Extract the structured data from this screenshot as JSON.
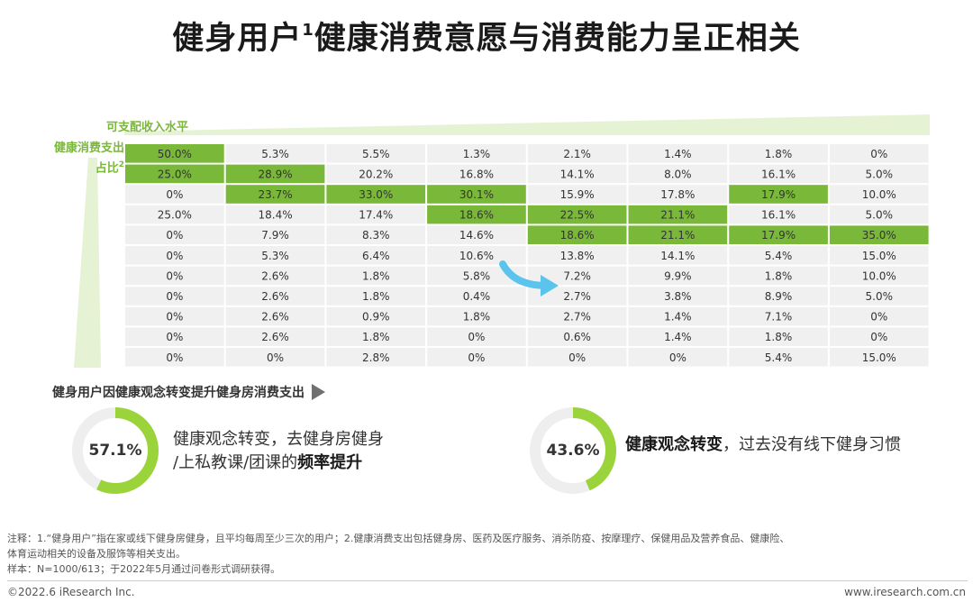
{
  "title": {
    "main": "健身用户",
    "sup": "1",
    "rest": "健康消费意愿与消费能力呈正相关"
  },
  "colors": {
    "accent": "#7ab83a",
    "cell_bg": "#f0f0f0",
    "highlight": "#7ab83a",
    "arrow": "#5ac4ec",
    "donut_track": "#eeeeee"
  },
  "chart_data": {
    "type": "table",
    "x_axis_label": "可支配收入水平",
    "y_axis_label": "健康消费支出占比",
    "y_axis_label_sup": "2",
    "rows": [
      [
        "50.0%",
        "5.3%",
        "5.5%",
        "1.3%",
        "2.1%",
        "1.4%",
        "1.8%",
        "0%"
      ],
      [
        "25.0%",
        "28.9%",
        "20.2%",
        "16.8%",
        "14.1%",
        "8.0%",
        "16.1%",
        "5.0%"
      ],
      [
        "0%",
        "23.7%",
        "33.0%",
        "30.1%",
        "15.9%",
        "17.8%",
        "17.9%",
        "10.0%"
      ],
      [
        "25.0%",
        "18.4%",
        "17.4%",
        "18.6%",
        "22.5%",
        "21.1%",
        "16.1%",
        "5.0%"
      ],
      [
        "0%",
        "7.9%",
        "8.3%",
        "14.6%",
        "18.6%",
        "21.1%",
        "17.9%",
        "35.0%"
      ],
      [
        "0%",
        "5.3%",
        "6.4%",
        "10.6%",
        "13.8%",
        "14.1%",
        "5.4%",
        "15.0%"
      ],
      [
        "0%",
        "2.6%",
        "1.8%",
        "5.8%",
        "7.2%",
        "9.9%",
        "1.8%",
        "10.0%"
      ],
      [
        "0%",
        "2.6%",
        "1.8%",
        "0.4%",
        "2.7%",
        "3.8%",
        "8.9%",
        "5.0%"
      ],
      [
        "0%",
        "2.6%",
        "0.9%",
        "1.8%",
        "2.7%",
        "1.4%",
        "7.1%",
        "0%"
      ],
      [
        "0%",
        "2.6%",
        "1.8%",
        "0%",
        "0.6%",
        "1.4%",
        "1.8%",
        "0%"
      ],
      [
        "0%",
        "0%",
        "2.8%",
        "0%",
        "0%",
        "0%",
        "5.4%",
        "15.0%"
      ]
    ],
    "highlighted": [
      [
        0,
        0
      ],
      [
        1,
        0
      ],
      [
        1,
        1
      ],
      [
        2,
        1
      ],
      [
        2,
        2
      ],
      [
        2,
        3
      ],
      [
        3,
        3
      ],
      [
        3,
        4
      ],
      [
        3,
        5
      ],
      [
        4,
        4
      ],
      [
        4,
        5
      ],
      [
        2,
        6
      ],
      [
        4,
        6
      ],
      [
        4,
        7
      ]
    ]
  },
  "section": {
    "title": "健身用户因健康观念转变提升健身房消费支出"
  },
  "donuts": [
    {
      "value": 57.1,
      "label": "57.1%",
      "text_normal_1": "健康观念转变，去健身房健身",
      "text_normal_2": "/上私教课/团课的",
      "text_bold": "频率提升"
    },
    {
      "value": 43.6,
      "label": "43.6%",
      "text_bold": "健康观念转变",
      "text_normal_1": "，过去没有线下健身习惯"
    }
  ],
  "notes": {
    "line1": "注释：1.“健身用户”指在家或线下健身房健身，且平均每周至少三次的用户；2.健康消费支出包括健身房、医药及医疗服务、消杀防疫、按摩理疗、保健用品及营养食品、健康险、",
    "line2": "体育运动相关的设备及服饰等相关支出。",
    "line3": "样本：N=1000/613；于2022年5月通过问卷形式调研获得。"
  },
  "footer": {
    "copyright": "©2022.6 iResearch Inc.",
    "url": "www.iresearch.com.cn"
  }
}
